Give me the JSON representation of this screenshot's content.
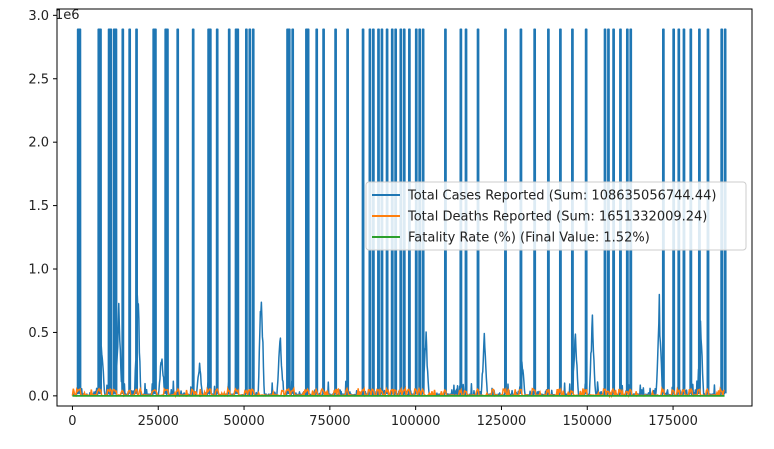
{
  "chart_data": {
    "type": "line",
    "title": "",
    "xlabel": "",
    "ylabel": "",
    "y_offset_label": "1e6",
    "xlim": [
      -4500,
      198000
    ],
    "ylim": [
      -0.08,
      3.05
    ],
    "x_ticks": [
      0,
      25000,
      50000,
      75000,
      100000,
      125000,
      150000,
      175000
    ],
    "x_tick_labels": [
      "0",
      "25000",
      "50000",
      "75000",
      "100000",
      "125000",
      "150000",
      "175000"
    ],
    "y_ticks": [
      0.0,
      0.5,
      1.0,
      1.5,
      2.0,
      2.5,
      3.0
    ],
    "y_tick_labels": [
      "0.0",
      "0.5",
      "1.0",
      "1.5",
      "2.0",
      "2.5",
      "3.0"
    ],
    "grid": false,
    "legend_position": "center-right",
    "series": [
      {
        "name": "Total Cases Reported (Sum: 108635056744.44)",
        "color": "#1f77b4",
        "x_range": [
          0,
          190000
        ],
        "spikes_x": [
          1500,
          2000,
          7500,
          8000,
          10500,
          11000,
          12000,
          12500,
          14500,
          16500,
          18500,
          23500,
          24000,
          27000,
          27500,
          30500,
          35000,
          39500,
          40000,
          42000,
          45500,
          47500,
          48000,
          50500,
          51500,
          52500,
          62500,
          63000,
          64000,
          68000,
          68500,
          71000,
          73000,
          76500,
          80000,
          84500,
          86500,
          87500,
          89000,
          90000,
          91500,
          93000,
          94000,
          95500,
          96500,
          98000,
          100000,
          101000,
          102000,
          108500,
          113000,
          114500,
          118000,
          126000,
          130500,
          134500,
          138500,
          142000,
          145500,
          149500,
          155000,
          156000,
          157500,
          159500,
          161500,
          162500,
          172000,
          175000,
          176500,
          178000,
          180000,
          182500,
          185000,
          189000,
          190000
        ],
        "spike_peak_millions": 2.89,
        "mid_peaks": [
          {
            "x": 8500,
            "y_millions": 0.44
          },
          {
            "x": 13500,
            "y_millions": 0.82
          },
          {
            "x": 19000,
            "y_millions": 1.0
          },
          {
            "x": 26000,
            "y_millions": 0.4
          },
          {
            "x": 37000,
            "y_millions": 0.28
          },
          {
            "x": 55000,
            "y_millions": 1.0
          },
          {
            "x": 60500,
            "y_millions": 0.6
          },
          {
            "x": 103000,
            "y_millions": 0.55
          },
          {
            "x": 120000,
            "y_millions": 0.52
          },
          {
            "x": 131000,
            "y_millions": 0.3
          },
          {
            "x": 146500,
            "y_millions": 0.6
          },
          {
            "x": 151500,
            "y_millions": 0.7
          },
          {
            "x": 171000,
            "y_millions": 0.81
          },
          {
            "x": 183000,
            "y_millions": 0.65
          }
        ]
      },
      {
        "name": "Total Deaths Reported (Sum: 1651332009.24)",
        "color": "#ff7f0e",
        "x_range": [
          0,
          190000
        ],
        "max_millions": 0.06
      },
      {
        "name": "Fatality Rate (%) (Final Value: 1.52%)",
        "color": "#2ca02c",
        "x_range": [
          0,
          190000
        ],
        "max_millions": 0.0
      }
    ]
  }
}
